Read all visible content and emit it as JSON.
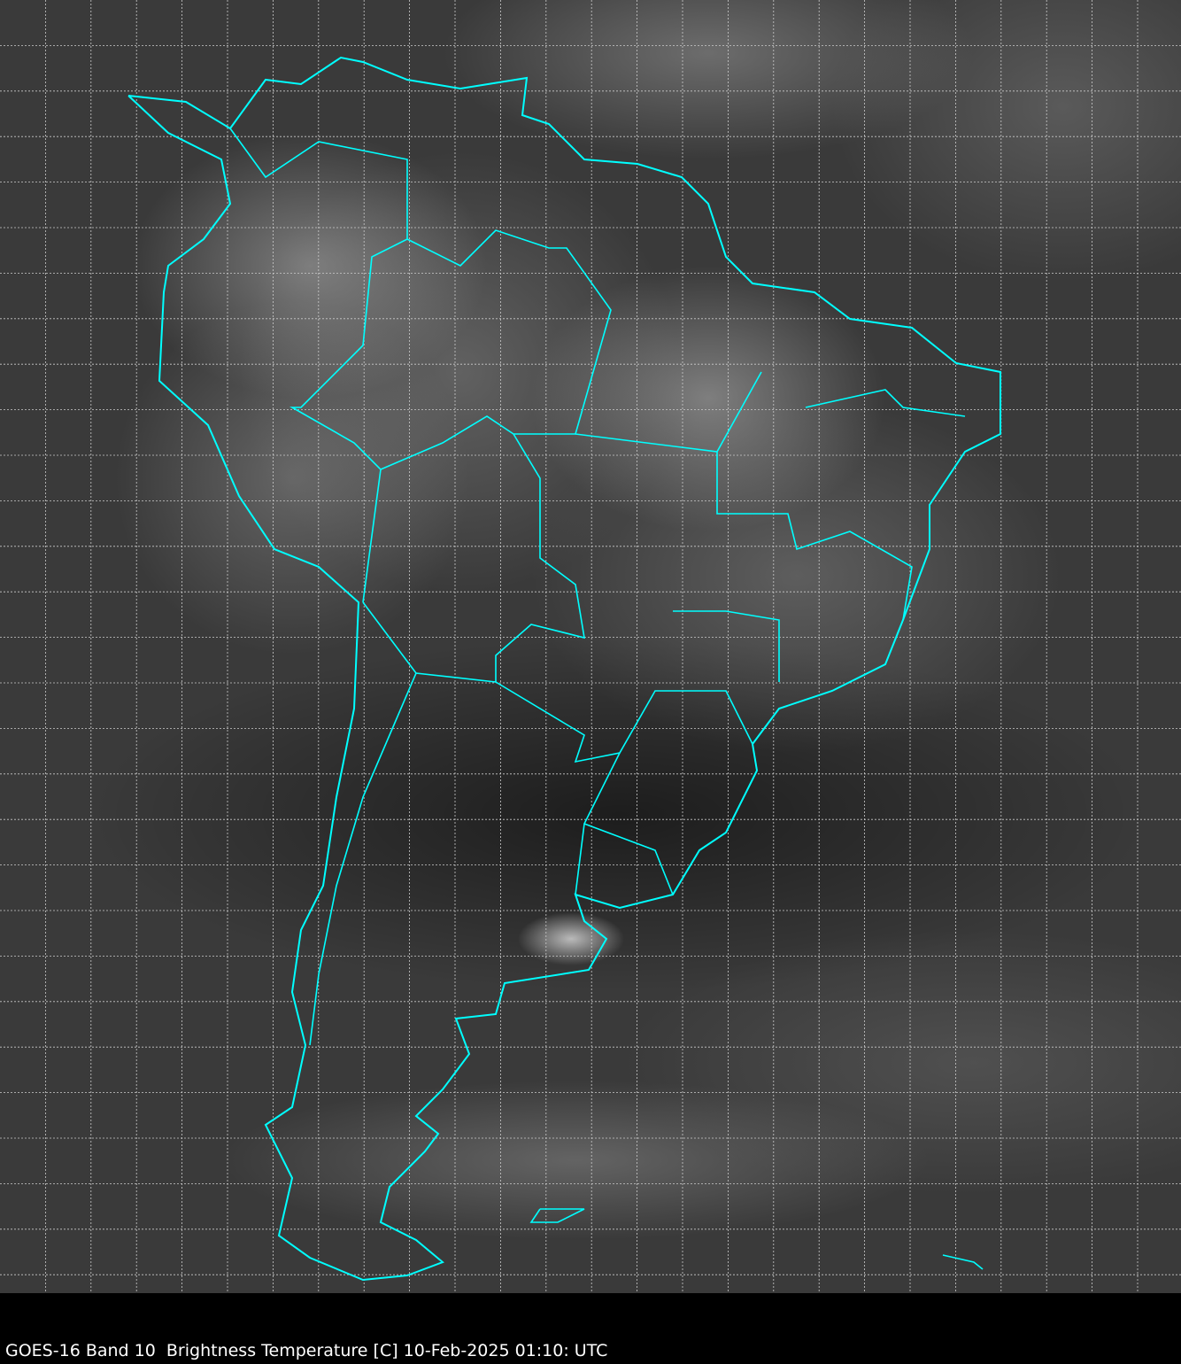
{
  "caption": "GOES-16 Band 10  Brightness Temperature [C] 10-Feb-2025 01:10: UTC",
  "colors": {
    "borders": "#00ffff",
    "grid": "#cccccc",
    "background": "#000000"
  },
  "grid": {
    "visible": true,
    "style": "dashed"
  }
}
